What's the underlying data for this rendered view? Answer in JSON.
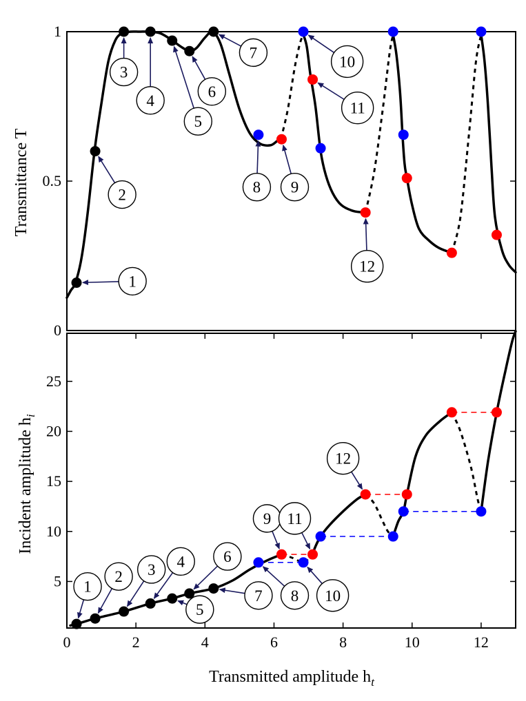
{
  "colors": {
    "black": "#000000",
    "blue": "#0000ff",
    "red": "#ff0000",
    "navy": "#1a1a5e"
  },
  "chart_data": [
    {
      "type": "line",
      "id": "top",
      "ylabel": "Transmittance T",
      "xlim": [
        0,
        13
      ],
      "ylim": [
        0,
        1
      ],
      "yticks": [
        {
          "value": 0,
          "label": "0"
        },
        {
          "value": 0.5,
          "label": "0.5"
        },
        {
          "value": 1,
          "label": "1"
        }
      ],
      "series": [
        {
          "name": "stable",
          "style": "solid",
          "segments": [
            [
              [
                0,
                0.11
              ],
              [
                0.12,
                0.135
              ],
              [
                0.25,
                0.16
              ],
              [
                0.42,
                0.24
              ],
              [
                0.6,
                0.39
              ],
              [
                0.8,
                0.6
              ],
              [
                1.0,
                0.76
              ],
              [
                1.2,
                0.9
              ],
              [
                1.4,
                0.97
              ],
              [
                1.6,
                0.995
              ],
              [
                1.85,
                1
              ],
              [
                2.1,
                1
              ],
              [
                2.4,
                1
              ],
              [
                2.7,
                0.995
              ],
              [
                3.0,
                0.975
              ],
              [
                3.3,
                0.95
              ],
              [
                3.55,
                0.935
              ],
              [
                3.75,
                0.945
              ],
              [
                4.0,
                0.98
              ],
              [
                4.22,
                1
              ],
              [
                4.45,
                0.96
              ],
              [
                4.7,
                0.86
              ],
              [
                5.0,
                0.74
              ],
              [
                5.3,
                0.66
              ],
              [
                5.6,
                0.625
              ],
              [
                5.9,
                0.62
              ],
              [
                6.1,
                0.635
              ],
              [
                6.2,
                0.64
              ]
            ],
            [
              [
                6.85,
                0.99
              ],
              [
                6.95,
                0.95
              ],
              [
                7.05,
                0.86
              ],
              [
                7.2,
                0.75
              ],
              [
                7.35,
                0.6
              ],
              [
                7.5,
                0.52
              ],
              [
                7.7,
                0.46
              ],
              [
                7.95,
                0.42
              ],
              [
                8.3,
                0.4
              ],
              [
                8.65,
                0.395
              ]
            ],
            [
              [
                9.45,
                0.99
              ],
              [
                9.55,
                0.92
              ],
              [
                9.65,
                0.8
              ],
              [
                9.72,
                0.66
              ],
              [
                9.78,
                0.56
              ],
              [
                9.85,
                0.51
              ],
              [
                10.0,
                0.42
              ],
              [
                10.2,
                0.34
              ],
              [
                10.5,
                0.3
              ],
              [
                10.8,
                0.275
              ],
              [
                11.15,
                0.26
              ]
            ],
            [
              [
                12.0,
                0.99
              ],
              [
                12.1,
                0.9
              ],
              [
                12.2,
                0.75
              ],
              [
                12.3,
                0.55
              ],
              [
                12.4,
                0.38
              ],
              [
                12.6,
                0.27
              ],
              [
                12.8,
                0.22
              ],
              [
                13.0,
                0.195
              ]
            ]
          ]
        },
        {
          "name": "unstable",
          "style": "dashed",
          "segments": [
            [
              [
                6.2,
                0.64
              ],
              [
                6.4,
                0.74
              ],
              [
                6.6,
                0.88
              ],
              [
                6.75,
                0.96
              ],
              [
                6.85,
                0.99
              ]
            ],
            [
              [
                8.65,
                0.395
              ],
              [
                8.9,
                0.53
              ],
              [
                9.15,
                0.74
              ],
              [
                9.35,
                0.93
              ],
              [
                9.45,
                0.99
              ]
            ],
            [
              [
                11.15,
                0.26
              ],
              [
                11.4,
                0.38
              ],
              [
                11.65,
                0.66
              ],
              [
                11.85,
                0.9
              ],
              [
                12.0,
                0.99
              ]
            ]
          ]
        }
      ],
      "points": [
        {
          "x": 0.28,
          "y": 0.16,
          "color": "black"
        },
        {
          "x": 0.82,
          "y": 0.6,
          "color": "black"
        },
        {
          "x": 1.65,
          "y": 1,
          "color": "black"
        },
        {
          "x": 2.42,
          "y": 1,
          "color": "black"
        },
        {
          "x": 3.05,
          "y": 0.97,
          "color": "black"
        },
        {
          "x": 3.55,
          "y": 0.935,
          "color": "black"
        },
        {
          "x": 4.25,
          "y": 1,
          "color": "black"
        },
        {
          "x": 5.55,
          "y": 0.655,
          "color": "blue"
        },
        {
          "x": 6.85,
          "y": 1,
          "color": "blue"
        },
        {
          "x": 7.35,
          "y": 0.61,
          "color": "blue"
        },
        {
          "x": 9.45,
          "y": 1,
          "color": "blue"
        },
        {
          "x": 9.75,
          "y": 0.655,
          "color": "blue"
        },
        {
          "x": 12.0,
          "y": 1,
          "color": "blue"
        },
        {
          "x": 6.22,
          "y": 0.64,
          "color": "red"
        },
        {
          "x": 7.12,
          "y": 0.84,
          "color": "red"
        },
        {
          "x": 8.65,
          "y": 0.395,
          "color": "red"
        },
        {
          "x": 9.85,
          "y": 0.51,
          "color": "red"
        },
        {
          "x": 11.15,
          "y": 0.26,
          "color": "red"
        },
        {
          "x": 12.45,
          "y": 0.32,
          "color": "red"
        }
      ],
      "annotations": [
        {
          "label": "1",
          "x": 0.28,
          "y": 0.16,
          "lx": 1.9,
          "ly": 0.165
        },
        {
          "label": "2",
          "x": 0.82,
          "y": 0.6,
          "lx": 1.6,
          "ly": 0.455
        },
        {
          "label": "3",
          "x": 1.65,
          "y": 1,
          "lx": 1.65,
          "ly": 0.865
        },
        {
          "label": "4",
          "x": 2.42,
          "y": 1,
          "lx": 2.42,
          "ly": 0.77
        },
        {
          "label": "5",
          "x": 3.05,
          "y": 0.97,
          "lx": 3.8,
          "ly": 0.7
        },
        {
          "label": "6",
          "x": 3.55,
          "y": 0.935,
          "lx": 4.2,
          "ly": 0.8
        },
        {
          "label": "7",
          "x": 4.25,
          "y": 1,
          "lx": 5.4,
          "ly": 0.93
        },
        {
          "label": "8",
          "x": 5.55,
          "y": 0.655,
          "lx": 5.5,
          "ly": 0.48
        },
        {
          "label": "9",
          "x": 6.22,
          "y": 0.64,
          "lx": 6.6,
          "ly": 0.48
        },
        {
          "label": "10",
          "x": 6.85,
          "y": 1,
          "lx": 8.12,
          "ly": 0.9
        },
        {
          "label": "11",
          "x": 7.12,
          "y": 0.84,
          "lx": 8.42,
          "ly": 0.745
        },
        {
          "label": "12",
          "x": 8.65,
          "y": 0.395,
          "lx": 8.7,
          "ly": 0.215
        }
      ]
    },
    {
      "type": "line",
      "id": "bottom",
      "xlabel": "Transmitted amplitude h",
      "xlabel_sub": "t",
      "ylabel": "Incident amplitude h",
      "ylabel_sub": "i",
      "xlim": [
        0,
        13
      ],
      "ylim": [
        0.35,
        29.8
      ],
      "xticks": [
        {
          "value": 0,
          "label": "0"
        },
        {
          "value": 2,
          "label": "2"
        },
        {
          "value": 4,
          "label": "4"
        },
        {
          "value": 6,
          "label": "6"
        },
        {
          "value": 8,
          "label": "8"
        },
        {
          "value": 10,
          "label": "10"
        },
        {
          "value": 12,
          "label": "12"
        }
      ],
      "yticks": [
        {
          "value": 5,
          "label": "5"
        },
        {
          "value": 10,
          "label": "10"
        },
        {
          "value": 15,
          "label": "15"
        },
        {
          "value": 20,
          "label": "20"
        },
        {
          "value": 25,
          "label": "25"
        }
      ],
      "series": [
        {
          "name": "stable",
          "style": "solid",
          "segments": [
            [
              [
                0.1,
                0.6
              ],
              [
                0.28,
                0.75
              ],
              [
                0.82,
                1.3
              ],
              [
                1.65,
                2.0
              ],
              [
                2.42,
                2.8
              ],
              [
                3.05,
                3.3
              ],
              [
                3.55,
                3.8
              ],
              [
                4.25,
                4.3
              ],
              [
                4.8,
                5.1
              ],
              [
                5.3,
                6.2
              ],
              [
                5.8,
                7.1
              ],
              [
                6.22,
                7.7
              ]
            ],
            [
              [
                7.12,
                7.7
              ],
              [
                7.2,
                8.5
              ],
              [
                7.35,
                9.5
              ],
              [
                7.6,
                10.6
              ],
              [
                8.0,
                12.0
              ],
              [
                8.4,
                13.2
              ],
              [
                8.65,
                13.7
              ]
            ],
            [
              [
                9.45,
                9.5
              ],
              [
                9.6,
                11.0
              ],
              [
                9.75,
                12.0
              ],
              [
                9.85,
                13.7
              ],
              [
                10.1,
                17.5
              ],
              [
                10.4,
                19.6
              ],
              [
                10.8,
                21.0
              ],
              [
                11.15,
                21.9
              ]
            ],
            [
              [
                12.0,
                12.0
              ],
              [
                12.2,
                17.0
              ],
              [
                12.45,
                21.9
              ],
              [
                12.7,
                26.0
              ],
              [
                12.9,
                29.0
              ],
              [
                13.0,
                30.0
              ]
            ]
          ]
        },
        {
          "name": "unstable",
          "style": "dashed",
          "segments": [
            [
              [
                6.22,
                7.7
              ],
              [
                6.5,
                7.4
              ],
              [
                6.85,
                6.9
              ],
              [
                7.0,
                7.3
              ],
              [
                7.12,
                7.7
              ]
            ],
            [
              [
                8.65,
                13.7
              ],
              [
                8.9,
                12.8
              ],
              [
                9.15,
                11.0
              ],
              [
                9.3,
                10.0
              ],
              [
                9.45,
                9.5
              ]
            ],
            [
              [
                11.15,
                21.9
              ],
              [
                11.4,
                20.0
              ],
              [
                11.7,
                16.5
              ],
              [
                11.9,
                13.2
              ],
              [
                12.0,
                12.0
              ]
            ]
          ]
        },
        {
          "name": "jumps",
          "style": "jump",
          "segments": [
            [
              [
                5.55,
                6.9
              ],
              [
                6.85,
                6.9
              ],
              "blue"
            ],
            [
              [
                6.22,
                7.7
              ],
              [
                7.12,
                7.7
              ],
              "red"
            ],
            [
              [
                7.35,
                9.5
              ],
              [
                9.45,
                9.5
              ],
              "blue"
            ],
            [
              [
                8.65,
                13.7
              ],
              [
                9.85,
                13.7
              ],
              "red"
            ],
            [
              [
                9.75,
                12.0
              ],
              [
                12.0,
                12.0
              ],
              "blue"
            ],
            [
              [
                11.15,
                21.9
              ],
              [
                12.45,
                21.9
              ],
              "red"
            ]
          ]
        }
      ],
      "points": [
        {
          "x": 0.28,
          "y": 0.75,
          "color": "black"
        },
        {
          "x": 0.82,
          "y": 1.3,
          "color": "black"
        },
        {
          "x": 1.65,
          "y": 2.0,
          "color": "black"
        },
        {
          "x": 2.42,
          "y": 2.8,
          "color": "black"
        },
        {
          "x": 3.05,
          "y": 3.3,
          "color": "black"
        },
        {
          "x": 3.55,
          "y": 3.8,
          "color": "black"
        },
        {
          "x": 4.25,
          "y": 4.3,
          "color": "black"
        },
        {
          "x": 5.55,
          "y": 6.9,
          "color": "blue"
        },
        {
          "x": 6.85,
          "y": 6.9,
          "color": "blue"
        },
        {
          "x": 7.35,
          "y": 9.5,
          "color": "blue"
        },
        {
          "x": 9.45,
          "y": 9.5,
          "color": "blue"
        },
        {
          "x": 9.75,
          "y": 12.0,
          "color": "blue"
        },
        {
          "x": 12.0,
          "y": 12.0,
          "color": "blue"
        },
        {
          "x": 6.22,
          "y": 7.7,
          "color": "red"
        },
        {
          "x": 7.12,
          "y": 7.7,
          "color": "red"
        },
        {
          "x": 8.65,
          "y": 13.7,
          "color": "red"
        },
        {
          "x": 9.85,
          "y": 13.7,
          "color": "red"
        },
        {
          "x": 11.15,
          "y": 21.9,
          "color": "red"
        },
        {
          "x": 12.45,
          "y": 21.9,
          "color": "red"
        }
      ],
      "annotations": [
        {
          "label": "1",
          "x": 0.28,
          "y": 0.75,
          "lx": 0.6,
          "ly": 4.5
        },
        {
          "label": "2",
          "x": 0.82,
          "y": 1.3,
          "lx": 1.5,
          "ly": 5.5
        },
        {
          "label": "3",
          "x": 1.65,
          "y": 2.0,
          "lx": 2.45,
          "ly": 6.2
        },
        {
          "label": "4",
          "x": 2.42,
          "y": 2.8,
          "lx": 3.3,
          "ly": 7.0
        },
        {
          "label": "5",
          "x": 3.05,
          "y": 3.3,
          "lx": 3.85,
          "ly": 2.2
        },
        {
          "label": "6",
          "x": 3.55,
          "y": 3.8,
          "lx": 4.65,
          "ly": 7.5
        },
        {
          "label": "7",
          "x": 4.25,
          "y": 4.3,
          "lx": 5.55,
          "ly": 3.6
        },
        {
          "label": "8",
          "x": 5.55,
          "y": 6.9,
          "lx": 6.6,
          "ly": 3.6
        },
        {
          "label": "9",
          "x": 6.22,
          "y": 7.7,
          "lx": 5.8,
          "ly": 11.3
        },
        {
          "label": "10",
          "x": 6.85,
          "y": 6.9,
          "lx": 7.7,
          "ly": 3.6
        },
        {
          "label": "11",
          "x": 7.12,
          "y": 7.7,
          "lx": 6.6,
          "ly": 11.3
        },
        {
          "label": "12",
          "x": 8.65,
          "y": 13.7,
          "lx": 8.0,
          "ly": 17.3
        }
      ]
    }
  ]
}
